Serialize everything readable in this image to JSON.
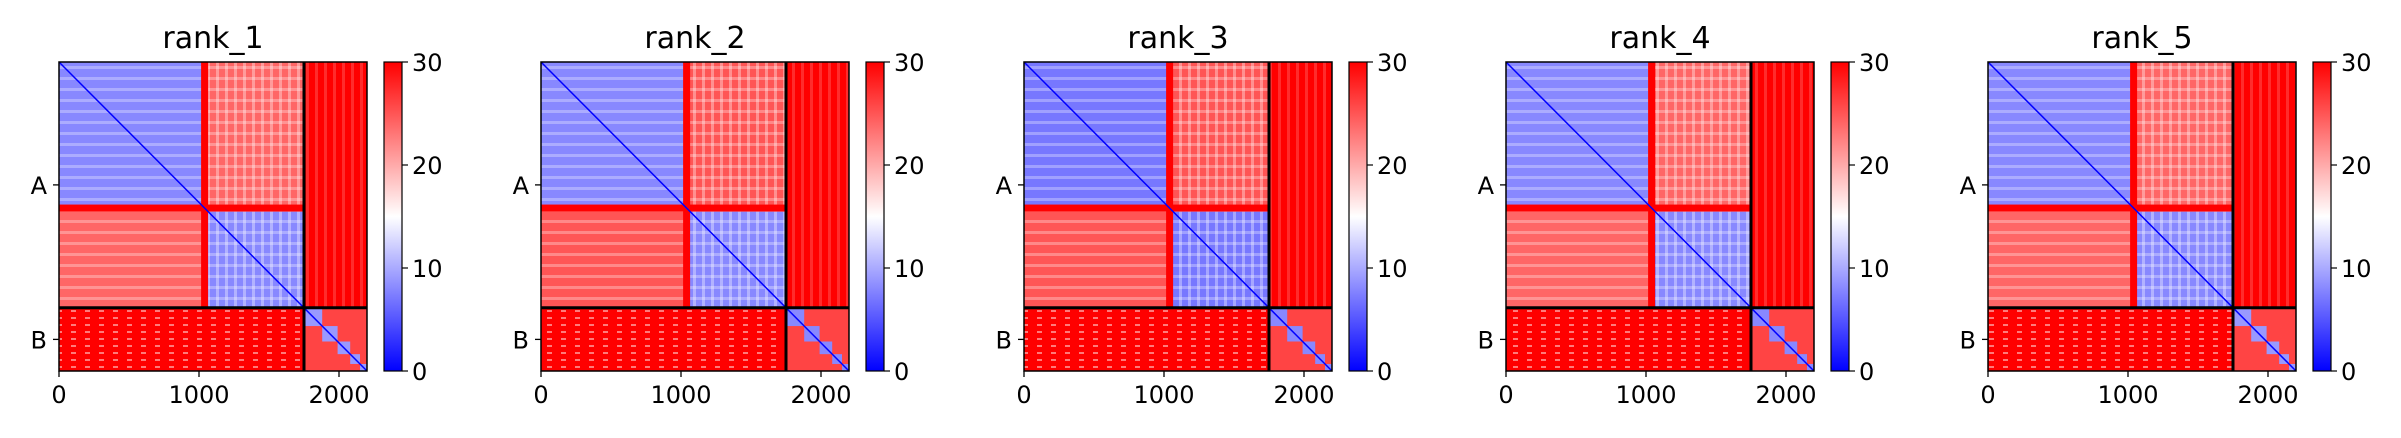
{
  "chart_data": {
    "type": "heatmap",
    "colormap": {
      "low": "#0000ff",
      "mid": "#ffffff",
      "high": "#ff0000"
    },
    "colorbar": {
      "min": 0,
      "max": 30,
      "ticks": [
        "0",
        "10",
        "20",
        "30"
      ]
    },
    "x_ticks": [
      {
        "value": 0,
        "label": "0"
      },
      {
        "value": 1000,
        "label": "1000"
      },
      {
        "value": 2000,
        "label": "2000"
      }
    ],
    "xlim": [
      0,
      2200
    ],
    "chain_boundary": 1750,
    "y_ticks": [
      {
        "chain": "A",
        "label": "A"
      },
      {
        "chain": "B",
        "label": "B"
      }
    ],
    "chain_A_internal_boundary": 1040,
    "panels": [
      {
        "title": "rank_1",
        "approx_values": {
          "A_block_diag": 8,
          "A_cross": 24,
          "B_block": 9,
          "A_B_cross": 30
        }
      },
      {
        "title": "rank_2",
        "approx_values": {
          "A_block_diag": 8,
          "A_cross": 25,
          "B_block": 8,
          "A_B_cross": 30
        }
      },
      {
        "title": "rank_3",
        "approx_values": {
          "A_block_diag": 7,
          "A_cross": 25,
          "B_block": 8,
          "A_B_cross": 30
        }
      },
      {
        "title": "rank_4",
        "approx_values": {
          "A_block_diag": 8,
          "A_cross": 24,
          "B_block": 8,
          "A_B_cross": 30
        }
      },
      {
        "title": "rank_5",
        "approx_values": {
          "A_block_diag": 8,
          "A_cross": 24,
          "B_block": 9,
          "A_B_cross": 30
        }
      }
    ]
  }
}
